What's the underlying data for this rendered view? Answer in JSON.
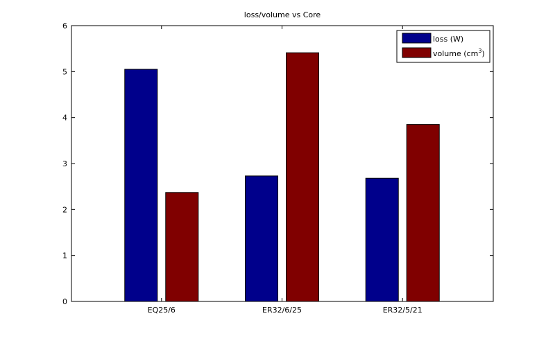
{
  "chart_data": {
    "type": "bar",
    "title": "loss/volume vs Core",
    "xlabel": "",
    "ylabel": "",
    "categories": [
      "EQ25/6",
      "ER32/6/25",
      "ER32/5/21"
    ],
    "series": [
      {
        "name": "loss (W)",
        "values": [
          5.05,
          2.73,
          2.68
        ],
        "color": "#00008b"
      },
      {
        "name": "volume (cm3)",
        "name_base": "volume (cm",
        "name_sup": "3",
        "name_tail": ")",
        "values": [
          2.37,
          5.41,
          3.85
        ],
        "color": "#800000"
      }
    ],
    "ylim": [
      0,
      6
    ],
    "yticks": [
      "0",
      "1",
      "2",
      "3",
      "4",
      "5",
      "6"
    ],
    "grid": false,
    "legend_position": "top-right"
  }
}
